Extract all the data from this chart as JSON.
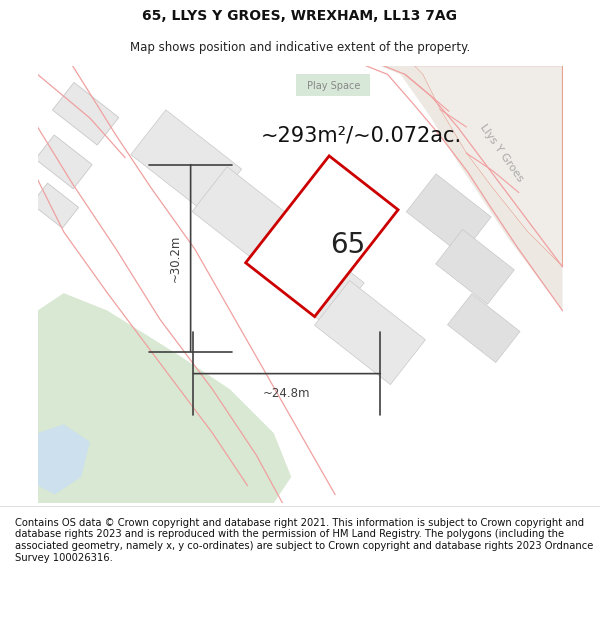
{
  "title": "65, LLYS Y GROES, WREXHAM, LL13 7AG",
  "subtitle": "Map shows position and indicative extent of the property.",
  "footer": "Contains OS data © Crown copyright and database right 2021. This information is subject to Crown copyright and database rights 2023 and is reproduced with the permission of HM Land Registry. The polygons (including the associated geometry, namely x, y co-ordinates) are subject to Crown copyright and database rights 2023 Ordnance Survey 100026316.",
  "area_label": "~293m²/~0.072ac.",
  "property_number": "65",
  "dim_width": "~24.8m",
  "dim_height": "~30.2m",
  "label_play_space": "Play Space",
  "label_road": "Llys Y Groes",
  "plot_outline_color": "#cc0000",
  "road_stroke": "#f0a0a0",
  "dim_color": "#404040",
  "title_fontsize": 10,
  "subtitle_fontsize": 8.5,
  "footer_fontsize": 7.2,
  "area_fontsize": 15,
  "number_fontsize": 20,
  "playspace_fontsize": 7,
  "road_label_fontsize": 8
}
